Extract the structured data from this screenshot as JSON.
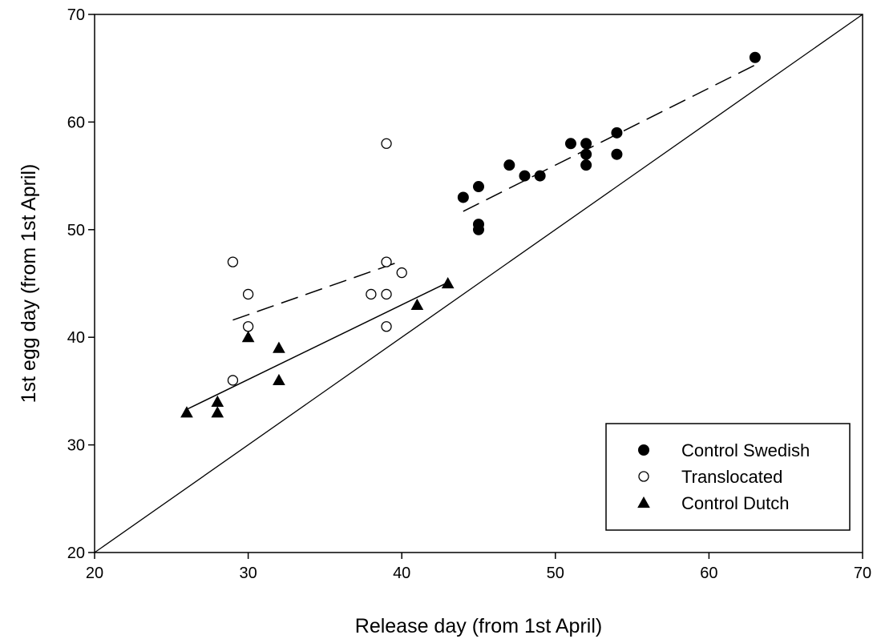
{
  "chart_data": {
    "type": "scatter",
    "xlabel": "Release day (from 1st April)",
    "ylabel": "1st egg day (from 1st April)",
    "xlim": [
      20,
      70
    ],
    "ylim": [
      20,
      70
    ],
    "xticks": [
      20,
      30,
      40,
      50,
      60,
      70
    ],
    "yticks": [
      20,
      30,
      40,
      50,
      60,
      70
    ],
    "legend_position": "bottom-right",
    "series": [
      {
        "name": "Control Swedish",
        "marker": "filled-circle",
        "points": [
          [
            44,
            53
          ],
          [
            45,
            54
          ],
          [
            45,
            50.5
          ],
          [
            45,
            50
          ],
          [
            47,
            56
          ],
          [
            48,
            55
          ],
          [
            49,
            55
          ],
          [
            51,
            58
          ],
          [
            52,
            58
          ],
          [
            52,
            57
          ],
          [
            52,
            56
          ],
          [
            54,
            59
          ],
          [
            54,
            57
          ],
          [
            63,
            66
          ]
        ],
        "fit": {
          "x": [
            44,
            63
          ],
          "y": [
            51.7,
            65.3
          ],
          "style": "dashed"
        }
      },
      {
        "name": "Translocated",
        "marker": "open-circle",
        "points": [
          [
            29,
            47
          ],
          [
            29,
            36
          ],
          [
            30,
            44
          ],
          [
            30,
            41
          ],
          [
            38,
            44
          ],
          [
            39,
            58
          ],
          [
            39,
            47
          ],
          [
            39,
            44
          ],
          [
            39,
            41
          ],
          [
            40,
            46
          ]
        ],
        "fit": {
          "x": [
            29,
            40
          ],
          "y": [
            41.6,
            47.1
          ],
          "style": "dashed"
        }
      },
      {
        "name": "Control Dutch",
        "marker": "filled-triangle",
        "points": [
          [
            26,
            33
          ],
          [
            28,
            34
          ],
          [
            28,
            33
          ],
          [
            30,
            40
          ],
          [
            32,
            39
          ],
          [
            32,
            36
          ],
          [
            41,
            43
          ],
          [
            43,
            45
          ]
        ],
        "fit": {
          "x": [
            26,
            43
          ],
          "y": [
            33.3,
            45.1
          ],
          "style": "solid"
        }
      }
    ],
    "reference_line": {
      "x": [
        20,
        70
      ],
      "y": [
        20,
        70
      ],
      "style": "solid"
    }
  }
}
